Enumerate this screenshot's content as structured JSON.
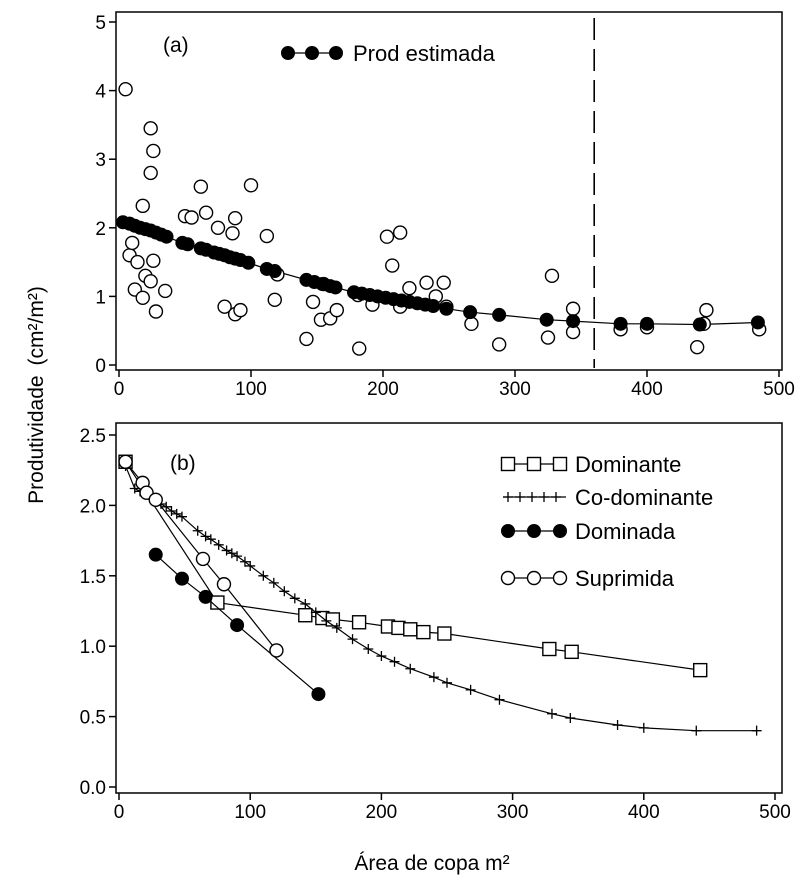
{
  "figure": {
    "ylabel": "Produtividade",
    "ylabel_unit": "(cm²/m²)",
    "xlabel": "Área de copa m²"
  },
  "chart_data": [
    {
      "panel": "a",
      "panel_label": "(a)",
      "type": "scatter",
      "xlim": [
        0,
        500
      ],
      "ylim": [
        0,
        5
      ],
      "xticks": [
        0,
        100,
        200,
        300,
        400,
        500
      ],
      "yticks": [
        0,
        1,
        2,
        3,
        4,
        5
      ],
      "cutoff_x": 360,
      "legend": {
        "position": "top",
        "label": "Prod estimada"
      },
      "observed": [
        [
          5,
          4.02
        ],
        [
          24,
          3.45
        ],
        [
          26,
          3.12
        ],
        [
          24,
          2.8
        ],
        [
          18,
          2.32
        ],
        [
          8,
          1.6
        ],
        [
          10,
          1.78
        ],
        [
          14,
          1.5
        ],
        [
          12,
          1.1
        ],
        [
          20,
          1.3
        ],
        [
          18,
          0.98
        ],
        [
          26,
          1.52
        ],
        [
          24,
          1.22
        ],
        [
          28,
          0.78
        ],
        [
          35,
          1.08
        ],
        [
          50,
          2.17
        ],
        [
          55,
          2.15
        ],
        [
          62,
          2.6
        ],
        [
          66,
          2.22
        ],
        [
          75,
          2.0
        ],
        [
          88,
          2.14
        ],
        [
          86,
          1.92
        ],
        [
          80,
          0.85
        ],
        [
          88,
          0.74
        ],
        [
          92,
          0.8
        ],
        [
          100,
          2.62
        ],
        [
          112,
          1.88
        ],
        [
          118,
          0.95
        ],
        [
          120,
          1.32
        ],
        [
          142,
          0.38
        ],
        [
          147,
          0.92
        ],
        [
          153,
          0.66
        ],
        [
          160,
          0.68
        ],
        [
          165,
          0.8
        ],
        [
          155,
          1.18
        ],
        [
          182,
          0.24
        ],
        [
          181,
          1.02
        ],
        [
          192,
          0.88
        ],
        [
          203,
          1.87
        ],
        [
          207,
          1.45
        ],
        [
          213,
          1.93
        ],
        [
          213,
          0.85
        ],
        [
          220,
          1.12
        ],
        [
          233,
          1.2
        ],
        [
          240,
          1.0
        ],
        [
          246,
          1.2
        ],
        [
          248,
          0.85
        ],
        [
          267,
          0.6
        ],
        [
          288,
          0.3
        ],
        [
          325,
          0.4
        ],
        [
          328,
          1.3
        ],
        [
          344,
          0.82
        ],
        [
          344,
          0.48
        ],
        [
          380,
          0.52
        ],
        [
          400,
          0.55
        ],
        [
          438,
          0.26
        ],
        [
          443,
          0.6
        ],
        [
          445,
          0.8
        ],
        [
          485,
          0.52
        ]
      ],
      "series": [
        {
          "name": "Prod estimada",
          "x": [
            3,
            8,
            12,
            16,
            20,
            24,
            28,
            32,
            36,
            48,
            52,
            62,
            66,
            72,
            76,
            80,
            84,
            88,
            92,
            98,
            112,
            118,
            142,
            148,
            154,
            160,
            164,
            178,
            184,
            190,
            196,
            202,
            208,
            214,
            220,
            226,
            232,
            238,
            248,
            266,
            288,
            324,
            344,
            380,
            400,
            440,
            484
          ],
          "y": [
            2.08,
            2.06,
            2.03,
            2.0,
            1.98,
            1.96,
            1.93,
            1.9,
            1.87,
            1.78,
            1.76,
            1.7,
            1.68,
            1.64,
            1.62,
            1.6,
            1.57,
            1.55,
            1.53,
            1.49,
            1.4,
            1.37,
            1.24,
            1.21,
            1.18,
            1.15,
            1.13,
            1.06,
            1.04,
            1.02,
            1.0,
            0.98,
            0.96,
            0.94,
            0.92,
            0.9,
            0.88,
            0.86,
            0.82,
            0.77,
            0.73,
            0.66,
            0.64,
            0.6,
            0.6,
            0.59,
            0.62
          ]
        }
      ]
    },
    {
      "panel": "b",
      "panel_label": "(b)",
      "type": "line",
      "xlim": [
        0,
        500
      ],
      "ylim": [
        0,
        2.5
      ],
      "xticks": [
        0,
        100,
        200,
        300,
        400,
        500
      ],
      "yticks": [
        "0.0",
        "0.5",
        "1.0",
        "1.5",
        "2.0",
        "2.5"
      ],
      "legend": {
        "position": "top-right"
      },
      "series": [
        {
          "name": "Dominante",
          "marker": "square",
          "x": [
            5,
            75,
            142,
            155,
            163,
            183,
            205,
            213,
            222,
            232,
            248,
            328,
            345,
            443
          ],
          "y": [
            2.31,
            1.31,
            1.22,
            1.2,
            1.19,
            1.17,
            1.14,
            1.13,
            1.12,
            1.1,
            1.09,
            0.98,
            0.96,
            0.83
          ]
        },
        {
          "name": "Co-dominante",
          "marker": "plus",
          "x": [
            5,
            12,
            16,
            20,
            24,
            28,
            32,
            36,
            40,
            44,
            48,
            60,
            66,
            70,
            76,
            82,
            86,
            90,
            96,
            100,
            110,
            118,
            126,
            134,
            142,
            150,
            158,
            166,
            178,
            190,
            200,
            210,
            222,
            240,
            250,
            268,
            290,
            330,
            344,
            380,
            400,
            440,
            486
          ],
          "y": [
            2.28,
            2.12,
            2.1,
            2.08,
            2.06,
            2.04,
            2.01,
            1.99,
            1.96,
            1.94,
            1.92,
            1.82,
            1.78,
            1.76,
            1.72,
            1.68,
            1.66,
            1.64,
            1.6,
            1.57,
            1.5,
            1.45,
            1.39,
            1.34,
            1.3,
            1.24,
            1.18,
            1.13,
            1.05,
            0.98,
            0.93,
            0.89,
            0.84,
            0.78,
            0.74,
            0.69,
            0.62,
            0.52,
            0.49,
            0.44,
            0.42,
            0.4,
            0.4
          ]
        },
        {
          "name": "Dominada",
          "marker": "filled-circle",
          "x": [
            28,
            48,
            66,
            90,
            152
          ],
          "y": [
            1.65,
            1.48,
            1.35,
            1.15,
            0.66
          ]
        },
        {
          "name": "Suprimida",
          "marker": "open-circle",
          "x": [
            5,
            18,
            21,
            28,
            64,
            80,
            120
          ],
          "y": [
            2.31,
            2.16,
            2.09,
            2.04,
            1.62,
            1.44,
            0.97
          ]
        }
      ]
    }
  ]
}
